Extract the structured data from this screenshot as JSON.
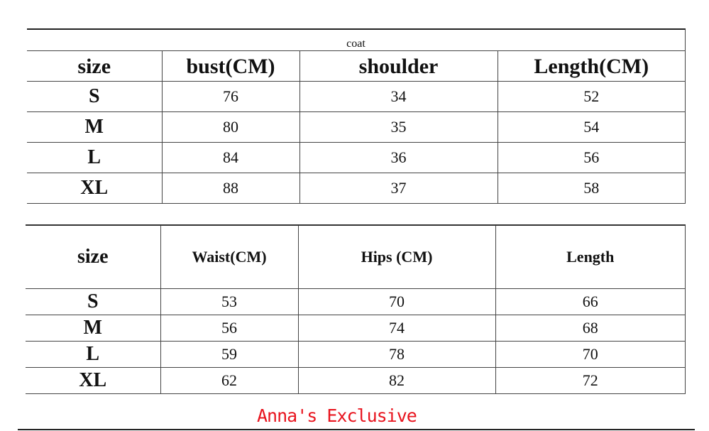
{
  "coat_table": {
    "title": "coat",
    "headers": [
      "size",
      "bust(CM)",
      "shoulder",
      "Length(CM)"
    ],
    "rows": [
      [
        "S",
        "76",
        "34",
        "52"
      ],
      [
        "M",
        "80",
        "35",
        "54"
      ],
      [
        "L",
        "84",
        "36",
        "56"
      ],
      [
        "XL",
        "88",
        "37",
        "58"
      ]
    ]
  },
  "bottom_table": {
    "headers": [
      "size",
      "Waist(CM)",
      "Hips (CM)",
      "Length"
    ],
    "rows": [
      [
        "S",
        "53",
        "70",
        "66"
      ],
      [
        "M",
        "56",
        "74",
        "68"
      ],
      [
        "L",
        "59",
        "78",
        "70"
      ],
      [
        "XL",
        "62",
        "82",
        "72"
      ]
    ]
  },
  "watermark": "Anna's Exclusive",
  "colors": {
    "watermark": "#e8141e",
    "grid": "#444444"
  }
}
